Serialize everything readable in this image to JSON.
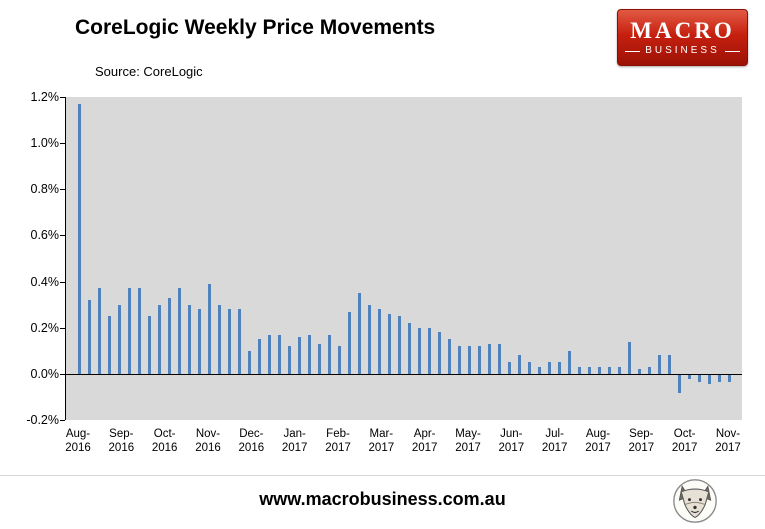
{
  "header": {
    "title": "CoreLogic Weekly Price Movements",
    "logo": {
      "line1": "MACRO",
      "line2": "BUSINESS",
      "background_color": "#c6200f"
    }
  },
  "chart": {
    "source": "Source: CoreLogic"
  },
  "chart_data": {
    "type": "bar",
    "title": "CoreLogic Weekly Price Movements",
    "source": "Source: CoreLogic",
    "xlabel": "",
    "ylabel": "",
    "unit": "percent",
    "ylim": [
      -0.2,
      1.2
    ],
    "y_tick_step": 0.2,
    "y_tick_labels": [
      "1.2%",
      "1.0%",
      "0.8%",
      "0.6%",
      "0.4%",
      "0.2%",
      "0.0%",
      "-0.2%"
    ],
    "x_tick_labels": [
      "Aug-2016",
      "Sep-2016",
      "Oct-2016",
      "Nov-2016",
      "Dec-2016",
      "Jan-2017",
      "Feb-2017",
      "Mar-2017",
      "Apr-2017",
      "May-2017",
      "Jun-2017",
      "Jul-2017",
      "Aug-2017",
      "Sep-2017",
      "Oct-2017",
      "Nov-2017"
    ],
    "frequency": "weekly",
    "grid": false,
    "legend": false,
    "plot_bg": "#D9D9D9",
    "bar_color": "#4F81BD",
    "values": [
      1.17,
      0.32,
      0.37,
      0.25,
      0.3,
      0.37,
      0.37,
      0.25,
      0.3,
      0.33,
      0.37,
      0.3,
      0.28,
      0.39,
      0.3,
      0.28,
      0.28,
      0.1,
      0.15,
      0.17,
      0.17,
      0.12,
      0.16,
      0.17,
      0.13,
      0.17,
      0.12,
      0.27,
      0.35,
      0.3,
      0.28,
      0.26,
      0.25,
      0.22,
      0.2,
      0.2,
      0.18,
      0.15,
      0.12,
      0.12,
      0.12,
      0.13,
      0.13,
      0.05,
      0.08,
      0.05,
      0.03,
      0.05,
      0.05,
      0.1,
      0.03,
      0.03,
      0.03,
      0.03,
      0.03,
      0.14,
      0.02,
      0.03,
      0.08,
      0.08,
      -0.08,
      -0.02,
      -0.03,
      -0.04,
      -0.03,
      -0.03
    ]
  },
  "footer": {
    "url": "www.macrobusiness.com.au",
    "fox_logo": "macrobusiness-fox-logo"
  }
}
